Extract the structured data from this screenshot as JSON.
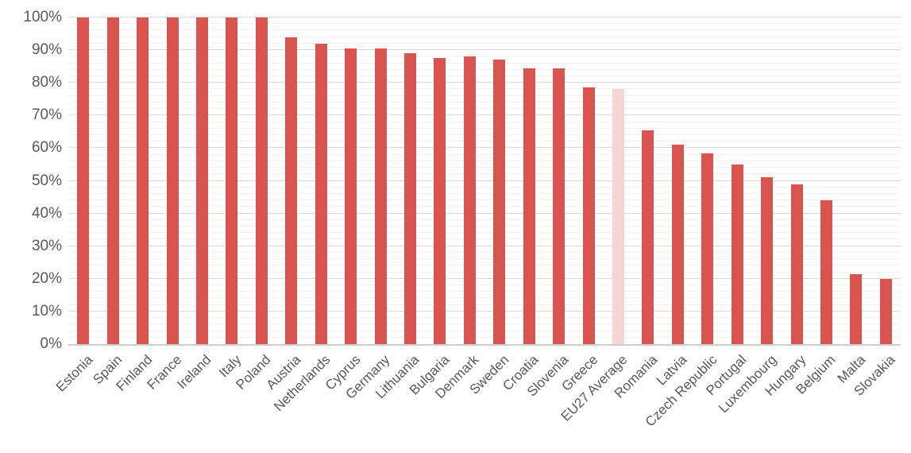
{
  "chart_data": {
    "type": "bar",
    "title": "",
    "xlabel": "",
    "ylabel": "",
    "categories": [
      "Estonia",
      "Spain",
      "Finland",
      "France",
      "Ireland",
      "Italy",
      "Poland",
      "Austria",
      "Netherlands",
      "Cyprus",
      "Germany",
      "Lithuania",
      "Bulgaria",
      "Denmark",
      "Sweden",
      "Croatia",
      "Slovenia",
      "Greece",
      "EU27 Average",
      "Romania",
      "Latvia",
      "Czech Republic",
      "Portugal",
      "Luxembourg",
      "Hungary",
      "Belgium",
      "Malta",
      "Slovakia"
    ],
    "values": [
      100,
      100,
      100,
      100,
      100,
      100,
      100,
      94,
      92,
      90.5,
      90.5,
      89,
      87.5,
      88,
      87,
      84.5,
      84.5,
      78.5,
      78,
      65.5,
      61,
      58.5,
      55,
      51,
      49,
      44,
      21.5,
      20
    ],
    "value_unit": "%",
    "highlight_category": "EU27 Average",
    "highlight_index": 18,
    "ylim": [
      0,
      100
    ],
    "y_major_unit": 10,
    "y_minor_unit": 2,
    "y_tick_labels": [
      "0%",
      "10%",
      "20%",
      "30%",
      "40%",
      "50%",
      "60%",
      "70%",
      "80%",
      "90%",
      "100%"
    ],
    "grid": true,
    "legend_position": "none",
    "colors": {
      "bar": "#d9534f",
      "highlight_bar": "#f6d6d3",
      "major_gridline": "#d9d9d9",
      "minor_gridline": "#f1f1f1",
      "axis_line": "#cecece",
      "label_text": "#595959"
    }
  }
}
